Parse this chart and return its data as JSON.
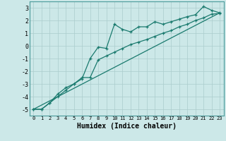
{
  "xlabel": "Humidex (Indice chaleur)",
  "background_color": "#cce8e8",
  "line_color": "#1a7a6e",
  "grid_color": "#aacccc",
  "xlim": [
    -0.5,
    23.5
  ],
  "ylim": [
    -5.5,
    3.5
  ],
  "xticks": [
    0,
    1,
    2,
    3,
    4,
    5,
    6,
    7,
    8,
    9,
    10,
    11,
    12,
    13,
    14,
    15,
    16,
    17,
    18,
    19,
    20,
    21,
    22,
    23
  ],
  "yticks": [
    -5,
    -4,
    -3,
    -2,
    -1,
    0,
    1,
    2,
    3
  ],
  "series1_x": [
    0,
    1,
    2,
    3,
    4,
    5,
    6,
    7,
    8,
    9,
    10,
    11,
    12,
    13,
    14,
    15,
    16,
    17,
    18,
    19,
    20,
    21,
    22,
    23
  ],
  "series1_y": [
    -5.0,
    -5.0,
    -4.5,
    -4.0,
    -3.5,
    -3.0,
    -2.6,
    -1.0,
    -0.1,
    -0.2,
    1.7,
    1.3,
    1.1,
    1.5,
    1.5,
    1.9,
    1.7,
    1.9,
    2.1,
    2.3,
    2.45,
    3.1,
    2.8,
    2.6
  ],
  "series2_x": [
    0,
    1,
    2,
    3,
    4,
    5,
    6,
    7,
    8,
    9,
    10,
    11,
    12,
    13,
    14,
    15,
    16,
    17,
    18,
    19,
    20,
    21,
    22,
    23
  ],
  "series2_y": [
    -5.0,
    -5.0,
    -4.5,
    -3.8,
    -3.3,
    -3.0,
    -2.5,
    -2.5,
    -1.1,
    -0.8,
    -0.5,
    -0.2,
    0.1,
    0.3,
    0.5,
    0.75,
    1.0,
    1.2,
    1.5,
    1.7,
    2.0,
    2.2,
    2.5,
    2.55
  ],
  "series3_x": [
    0,
    23
  ],
  "series3_y": [
    -5.0,
    2.6
  ]
}
